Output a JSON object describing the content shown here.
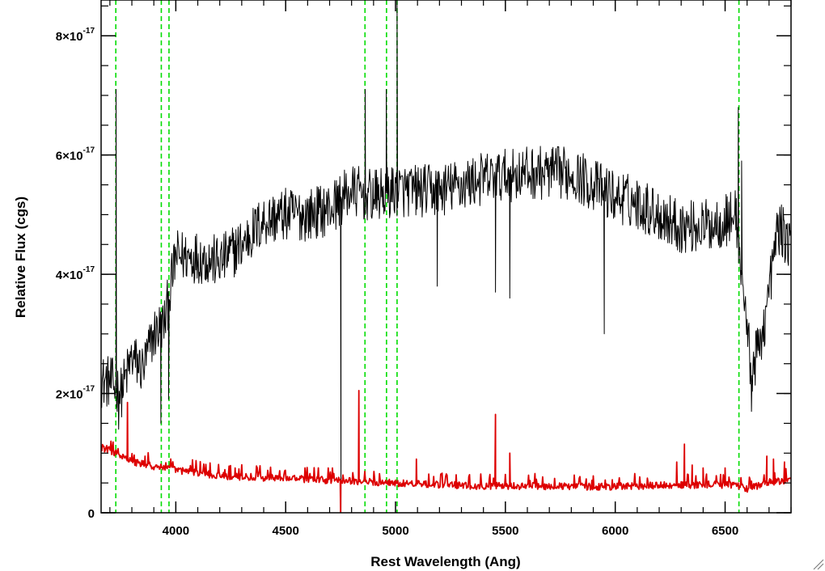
{
  "chart_data": {
    "type": "line",
    "title": "",
    "xlabel": "Rest Wavelength (Ang)",
    "ylabel": "Relative Flux (cgs)",
    "xlim": [
      3660,
      6800
    ],
    "ylim": [
      0,
      8.6e-17
    ],
    "x_ticks": [
      4000,
      4500,
      5000,
      5500,
      6000,
      6500
    ],
    "x_tick_labels": [
      "4000",
      "4500",
      "5000",
      "5500",
      "6000",
      "6500"
    ],
    "y_ticks": [
      0,
      2e-17,
      4e-17,
      6e-17,
      8e-17
    ],
    "y_tick_labels": [
      {
        "mantissa": "0",
        "exponent": ""
      },
      {
        "mantissa": "2×10",
        "exponent": "-17"
      },
      {
        "mantissa": "4×10",
        "exponent": "-17"
      },
      {
        "mantissa": "6×10",
        "exponent": "-17"
      },
      {
        "mantissa": "8×10",
        "exponent": "-17"
      }
    ],
    "grid": false,
    "reference_lines": {
      "color": "#00dd00",
      "style": "dashed",
      "x": [
        3727,
        3934,
        3969,
        4861,
        4959,
        5007,
        6563
      ]
    },
    "series": [
      {
        "role": "spectrum",
        "color": "#000000",
        "continuum": [
          [
            3660,
            2.2e-17
          ],
          [
            3700,
            2.2e-17
          ],
          [
            3750,
            2e-17
          ],
          [
            3800,
            2.6e-17
          ],
          [
            3850,
            2.4e-17
          ],
          [
            3900,
            3e-17
          ],
          [
            3950,
            3.2e-17
          ],
          [
            4000,
            4.3e-17
          ],
          [
            4100,
            4.3e-17
          ],
          [
            4200,
            4.2e-17
          ],
          [
            4300,
            4.5e-17
          ],
          [
            4400,
            4.9e-17
          ],
          [
            4500,
            5e-17
          ],
          [
            4600,
            5e-17
          ],
          [
            4700,
            5.1e-17
          ],
          [
            4800,
            5.4e-17
          ],
          [
            4900,
            5.3e-17
          ],
          [
            5000,
            5.4e-17
          ],
          [
            5200,
            5.4e-17
          ],
          [
            5400,
            5.6e-17
          ],
          [
            5600,
            5.7e-17
          ],
          [
            5800,
            5.7e-17
          ],
          [
            5900,
            5.5e-17
          ],
          [
            6000,
            5.3e-17
          ],
          [
            6100,
            5.2e-17
          ],
          [
            6200,
            5e-17
          ],
          [
            6300,
            4.8e-17
          ],
          [
            6400,
            4.8e-17
          ],
          [
            6500,
            4.9e-17
          ],
          [
            6550,
            5e-17
          ],
          [
            6590,
            3.5e-17
          ],
          [
            6620,
            2.3e-17
          ],
          [
            6680,
            3.2e-17
          ],
          [
            6740,
            4.8e-17
          ],
          [
            6800,
            4.5e-17
          ]
        ],
        "features": [
          {
            "x": 3728,
            "y": 7.1e-17
          },
          {
            "x": 3740,
            "y": 1.4e-17
          },
          {
            "x": 3932,
            "y": 1.5e-17
          },
          {
            "x": 3967,
            "y": 1.9e-17
          },
          {
            "x": 4752,
            "y": 0.0
          },
          {
            "x": 4862,
            "y": 7.1e-17
          },
          {
            "x": 4958,
            "y": 7.1e-17
          },
          {
            "x": 5007,
            "y": 8.6e-17
          },
          {
            "x": 5190,
            "y": 3.8e-17
          },
          {
            "x": 5455,
            "y": 3.7e-17
          },
          {
            "x": 5520,
            "y": 3.6e-17
          },
          {
            "x": 5950,
            "y": 3e-17
          },
          {
            "x": 6560,
            "y": 6.8e-17
          },
          {
            "x": 6575,
            "y": 5.9e-17
          },
          {
            "x": 6620,
            "y": 1.7e-17
          }
        ],
        "noise_amplitude": 4.5e-18
      },
      {
        "role": "error",
        "color": "#dd0000",
        "continuum": [
          [
            3660,
            1.1e-17
          ],
          [
            3700,
            1.05e-17
          ],
          [
            3800,
            8.5e-18
          ],
          [
            3900,
            7.8e-18
          ],
          [
            4000,
            7.2e-18
          ],
          [
            4200,
            6.2e-18
          ],
          [
            4400,
            5.9e-18
          ],
          [
            4600,
            5.6e-18
          ],
          [
            4800,
            5.3e-18
          ],
          [
            5000,
            5e-18
          ],
          [
            5200,
            4.7e-18
          ],
          [
            5400,
            4.5e-18
          ],
          [
            5600,
            4.5e-18
          ],
          [
            5800,
            4.4e-18
          ],
          [
            6000,
            4.4e-18
          ],
          [
            6200,
            4.6e-18
          ],
          [
            6400,
            4.7e-18
          ],
          [
            6550,
            4.7e-18
          ],
          [
            6600,
            4e-18
          ],
          [
            6700,
            5.2e-18
          ],
          [
            6800,
            5.5e-18
          ]
        ],
        "features": [
          {
            "x": 3780,
            "y": 1.85e-17
          },
          {
            "x": 3860,
            "y": 9.5e-18
          },
          {
            "x": 4270,
            "y": 7.5e-18
          },
          {
            "x": 4750,
            "y": 0.0
          },
          {
            "x": 4833,
            "y": 2.05e-17
          },
          {
            "x": 5095,
            "y": 9e-18
          },
          {
            "x": 5455,
            "y": 1.65e-17
          },
          {
            "x": 5520,
            "y": 1e-17
          },
          {
            "x": 6280,
            "y": 8.5e-18
          },
          {
            "x": 6315,
            "y": 1.15e-17
          },
          {
            "x": 6350,
            "y": 8e-18
          },
          {
            "x": 6400,
            "y": 7.5e-18
          },
          {
            "x": 6500,
            "y": 7.5e-18
          },
          {
            "x": 6690,
            "y": 9.5e-18
          },
          {
            "x": 6720,
            "y": 9e-18
          },
          {
            "x": 6770,
            "y": 8.5e-18
          }
        ],
        "noise_amplitude": 6e-19
      }
    ]
  }
}
